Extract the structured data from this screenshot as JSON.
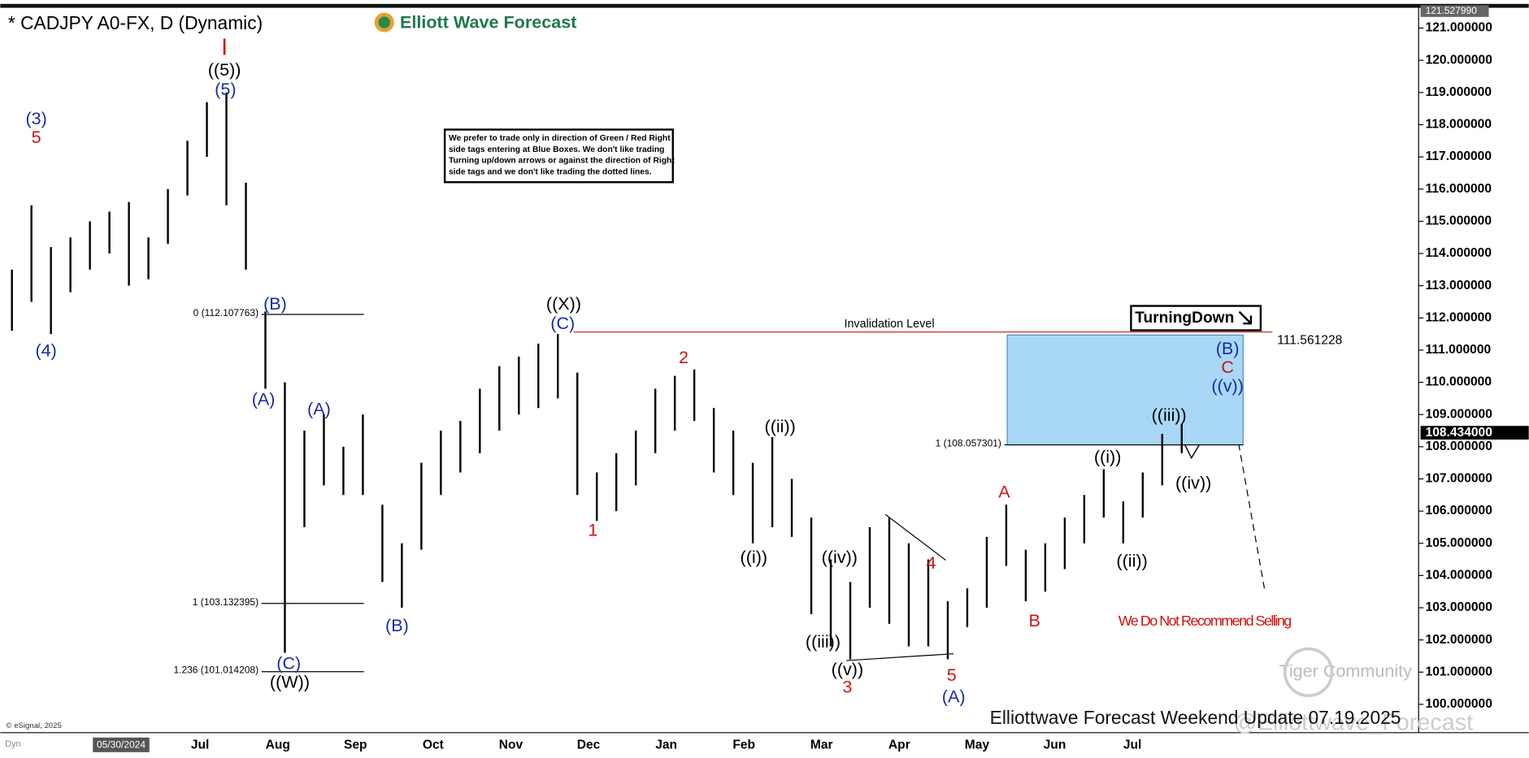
{
  "chart_data": {
    "type": "ohlc",
    "title": "* CADJPY A0-FX, D (Dynamic)",
    "logo": "Elliott Wave Forecast",
    "notice": [
      "We prefer to trade only in direction of Green / Red Right",
      "side tags entering at Blue Boxes. We don't like trading",
      "Turning up/down arrows or against the direction of Right",
      "side tags and we don't like trading the dotted lines."
    ],
    "turning_down": "TurningDown",
    "no_sell": "We Do Not Recommend Selling",
    "footer": "Elliottwave Forecast Weekend Update 07.19.2025",
    "watermark": "Tiger Community",
    "watermark2": "@Elliottwave_Forecast",
    "copyright": "© eSignal, 2025",
    "start_date": "05/30/2024",
    "dyn": "Dyn",
    "color": "#000000",
    "ylim": [
      99.12,
      121.63
    ],
    "yticks": [
      {
        "value": 100,
        "label": "100.000000"
      },
      {
        "value": 101,
        "label": "101.000000"
      },
      {
        "value": 102,
        "label": "102.000000"
      },
      {
        "value": 103,
        "label": "103.000000"
      },
      {
        "value": 104,
        "label": "104.000000"
      },
      {
        "value": 105,
        "label": "105.000000"
      },
      {
        "value": 106,
        "label": "106.000000"
      },
      {
        "value": 107,
        "label": "107.000000"
      },
      {
        "value": 108,
        "label": "108.000000"
      },
      {
        "value": 109,
        "label": "109.000000"
      },
      {
        "value": 110,
        "label": "110.000000"
      },
      {
        "value": 111,
        "label": "111.000000"
      },
      {
        "value": 112,
        "label": "112.000000"
      },
      {
        "value": 113,
        "label": "113.000000"
      },
      {
        "value": 114,
        "label": "114.000000"
      },
      {
        "value": 115,
        "label": "115.000000"
      },
      {
        "value": 116,
        "label": "116.000000"
      },
      {
        "value": 117,
        "label": "117.000000"
      },
      {
        "value": 118,
        "label": "118.000000"
      },
      {
        "value": 119,
        "label": "119.000000"
      },
      {
        "value": 120,
        "label": "120.000000"
      },
      {
        "value": 121,
        "label": "121.000000"
      }
    ],
    "categories": [
      "Jul",
      "Aug",
      "Sep",
      "Oct",
      "Nov",
      "Dec",
      "Jan",
      "Feb",
      "Mar",
      "Apr",
      "May",
      "Jun",
      "Jul"
    ],
    "highs": [
      113.5,
      115.5,
      114.2,
      114.5,
      115.0,
      115.3,
      115.6,
      114.5,
      116.0,
      117.5,
      118.7,
      119.0,
      116.2,
      112.2,
      110.0,
      108.5,
      109.0,
      108.0,
      109.0,
      106.2,
      105.0,
      107.5,
      108.5,
      108.8,
      109.8,
      110.5,
      110.8,
      111.2,
      111.5,
      110.3,
      107.2,
      107.8,
      108.5,
      109.8,
      110.2,
      110.4,
      109.2,
      108.5,
      107.5,
      108.3,
      107.0,
      105.8,
      104.5,
      103.8,
      105.5,
      105.8,
      105.0,
      104.5,
      103.2,
      103.6,
      105.2,
      106.2,
      104.8,
      105.0,
      105.8,
      106.5,
      107.3,
      106.3,
      107.2,
      108.4,
      108.7
    ],
    "lows": [
      111.6,
      112.5,
      111.5,
      112.8,
      113.5,
      114.0,
      113.0,
      113.2,
      114.3,
      115.8,
      117.0,
      115.5,
      113.5,
      109.8,
      101.6,
      105.5,
      106.8,
      106.5,
      106.5,
      103.8,
      103.0,
      104.8,
      106.5,
      107.2,
      107.8,
      108.5,
      109.0,
      109.2,
      109.5,
      106.5,
      105.7,
      106.0,
      106.8,
      107.8,
      108.5,
      108.8,
      107.2,
      106.5,
      105.0,
      105.5,
      105.2,
      102.8,
      101.8,
      101.4,
      103.0,
      102.5,
      101.8,
      101.8,
      101.4,
      102.4,
      103.0,
      104.3,
      103.2,
      103.5,
      104.2,
      105.0,
      105.8,
      105.0,
      105.8,
      106.8,
      107.8
    ],
    "top_price": {
      "value": 121.52799,
      "label": "121.527990"
    },
    "last_price": {
      "value": 108.434,
      "label": "108.434000"
    },
    "invalidation": {
      "text": "Invalidation Level",
      "value": 111.561228,
      "label": "111.561228"
    },
    "fib_levels": [
      {
        "value": 112.107763,
        "label": "0 (112.107763)"
      },
      {
        "value": 103.132395,
        "label": "1 (103.132395)"
      },
      {
        "value": 101.014208,
        "label": "1.236 (101.014208)"
      },
      {
        "value": 108.057301,
        "label": "1 (108.057301)"
      }
    ],
    "blue_box": {
      "low": 108.057301,
      "high": 111.47,
      "color": "#a8d8f5"
    },
    "annotations": [
      {
        "text": "I",
        "color": "#d01010"
      },
      {
        "text": "((5))",
        "color": "#000000"
      },
      {
        "text": "(5)",
        "color": "#1a2aa8"
      },
      {
        "text": "(3)",
        "color": "#1a2aa8"
      },
      {
        "text": "5",
        "color": "#d01010"
      },
      {
        "text": "(4)",
        "color": "#1a2aa8"
      },
      {
        "text": "(B)",
        "color": "#1a2aa8"
      },
      {
        "text": "(A)",
        "color": "#1a2aa8"
      },
      {
        "text": "(A)",
        "color": "#1a2aa8"
      },
      {
        "text": "(C)",
        "color": "#1a2aa8"
      },
      {
        "text": "((W))",
        "color": "#000000"
      },
      {
        "text": "(B)",
        "color": "#1a2aa8"
      },
      {
        "text": "((X))",
        "color": "#000000"
      },
      {
        "text": "(C)",
        "color": "#1a2aa8"
      },
      {
        "text": "1",
        "color": "#d01010"
      },
      {
        "text": "2",
        "color": "#d01010"
      },
      {
        "text": "((ii))",
        "color": "#000000"
      },
      {
        "text": "((i))",
        "color": "#000000"
      },
      {
        "text": "((iv))",
        "color": "#000000"
      },
      {
        "text": "((iii))",
        "color": "#000000"
      },
      {
        "text": "((v))",
        "color": "#000000"
      },
      {
        "text": "3",
        "color": "#d01010"
      },
      {
        "text": "4",
        "color": "#d01010"
      },
      {
        "text": "5",
        "color": "#d01010"
      },
      {
        "text": "(A)",
        "color": "#1a2aa8"
      },
      {
        "text": "A",
        "color": "#d01010"
      },
      {
        "text": "B",
        "color": "#d01010"
      },
      {
        "text": "((i))",
        "color": "#000000"
      },
      {
        "text": "((ii))",
        "color": "#000000"
      },
      {
        "text": "((iii))",
        "color": "#000000"
      },
      {
        "text": "((iv))",
        "color": "#000000"
      },
      {
        "text": "((v))",
        "color": "#1a2aa8"
      },
      {
        "text": "C",
        "color": "#d01010"
      },
      {
        "text": "(B)",
        "color": "#1a2aa8"
      }
    ]
  }
}
